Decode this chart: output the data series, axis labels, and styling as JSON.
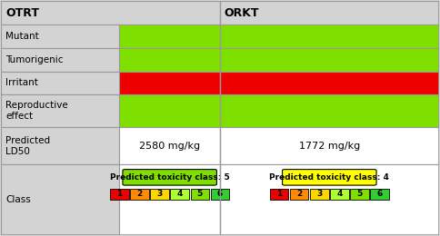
{
  "col1_header": "OTRT",
  "col2_header": "ORKT",
  "rows": [
    {
      "label": "Mutant",
      "col1_color": "#7FE000",
      "col2_color": "#7FE000"
    },
    {
      "label": "Tumorigenic",
      "col1_color": "#7FE000",
      "col2_color": "#7FE000"
    },
    {
      "label": "Irritant",
      "col1_color": "#EE0000",
      "col2_color": "#EE0000"
    },
    {
      "label": "Reproductive\neffect",
      "col1_color": "#7FE000",
      "col2_color": "#7FE000"
    }
  ],
  "predicted_ld50_label": "Predicted\nLD50",
  "col1_ld50": "2580 mg/kg",
  "col2_ld50": "1772 mg/kg",
  "class_label": "Class",
  "col1_class_text": "Predicted toxicity class: 5",
  "col1_class_bg": "#7FE000",
  "col2_class_text": "Predicted toxicity class: 4",
  "col2_class_bg": "#FFFF00",
  "class_boxes": [
    {
      "num": "1",
      "color": "#EE0000"
    },
    {
      "num": "2",
      "color": "#FF8C00"
    },
    {
      "num": "3",
      "color": "#FFD700"
    },
    {
      "num": "4",
      "color": "#ADFF2F"
    },
    {
      "num": "5",
      "color": "#7FE000"
    },
    {
      "num": "6",
      "color": "#32CD32"
    }
  ],
  "bg_color": "#D3D3D3",
  "border_color": "#999999",
  "header_bg": "#D3D3D3"
}
